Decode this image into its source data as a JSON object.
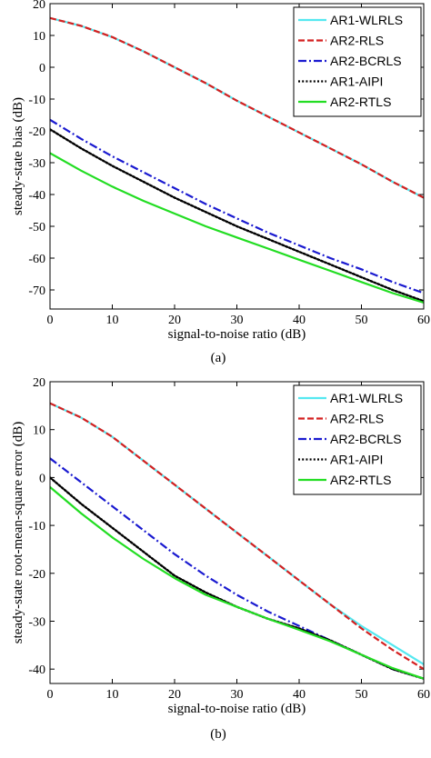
{
  "chart_data": [
    {
      "type": "line",
      "caption": "(a)",
      "xlabel": "signal-to-noise ratio (dB)",
      "ylabel": "steady-state bias (dB)",
      "xlim": [
        0,
        60
      ],
      "ylim": [
        -76,
        20
      ],
      "xticks": [
        0,
        10,
        20,
        30,
        40,
        50,
        60
      ],
      "yticks": [
        20,
        10,
        0,
        -10,
        -20,
        -30,
        -40,
        -50,
        -60,
        -70
      ],
      "legend_position": "top-right",
      "x": [
        0,
        5,
        10,
        15,
        20,
        25,
        30,
        35,
        40,
        45,
        50,
        55,
        60
      ],
      "series": [
        {
          "name": "AR1-WLRLS",
          "color": "#55e8f0",
          "dash": "solid",
          "values": [
            15.5,
            13,
            9.5,
            5,
            0,
            -5,
            -10.5,
            -15.5,
            -20.5,
            -25.5,
            -30.5,
            -36,
            -41
          ]
        },
        {
          "name": "AR2-RLS",
          "color": "#d42020",
          "dash": "dashed",
          "values": [
            15.5,
            13,
            9.5,
            5,
            0,
            -5,
            -10.5,
            -15.5,
            -20.5,
            -25.5,
            -30.5,
            -36,
            -41
          ]
        },
        {
          "name": "AR2-BCRLS",
          "color": "#1a1ad0",
          "dash": "dashdot",
          "values": [
            -16.5,
            -22.5,
            -28,
            -33,
            -38,
            -43,
            -47.5,
            -52,
            -56,
            -60,
            -63.5,
            -67.5,
            -71
          ]
        },
        {
          "name": "AR1-AIPI",
          "color": "#000000",
          "dash": "dotted",
          "values": [
            -19.5,
            -25.5,
            -31,
            -36,
            -41,
            -45.5,
            -50,
            -54,
            -58,
            -62,
            -66,
            -70,
            -73.5
          ]
        },
        {
          "name": "AR2-RTLS",
          "color": "#22dd22",
          "dash": "solid",
          "values": [
            -27,
            -32.5,
            -37.5,
            -42,
            -46,
            -50,
            -53.5,
            -57,
            -60.5,
            -64,
            -67.5,
            -71,
            -74
          ]
        }
      ]
    },
    {
      "type": "line",
      "caption": "(b)",
      "xlabel": "signal-to-noise ratio (dB)",
      "ylabel": "steady-state root-mean-square error (dB)",
      "xlim": [
        0,
        60
      ],
      "ylim": [
        -43,
        20
      ],
      "xticks": [
        0,
        10,
        20,
        30,
        40,
        50,
        60
      ],
      "yticks": [
        20,
        10,
        0,
        -10,
        -20,
        -30,
        -40
      ],
      "legend_position": "top-right",
      "x": [
        0,
        5,
        10,
        15,
        20,
        25,
        30,
        35,
        40,
        45,
        50,
        55,
        60
      ],
      "series": [
        {
          "name": "AR1-WLRLS",
          "color": "#55e8f0",
          "dash": "solid",
          "values": [
            15.5,
            12.5,
            8.5,
            3.5,
            -1.5,
            -6.5,
            -11.5,
            -16.5,
            -21.5,
            -26.5,
            -31,
            -35,
            -39
          ]
        },
        {
          "name": "AR2-RLS",
          "color": "#d42020",
          "dash": "dashed",
          "values": [
            15.5,
            12.5,
            8.5,
            3.5,
            -1.5,
            -6.5,
            -11.5,
            -16.5,
            -21.5,
            -26.5,
            -31.5,
            -36,
            -40
          ]
        },
        {
          "name": "AR2-BCRLS",
          "color": "#1a1ad0",
          "dash": "dashdot",
          "values": [
            4,
            -1,
            -6,
            -11,
            -16,
            -20.5,
            -24.5,
            -28,
            -31,
            -34,
            -37,
            -40,
            -42
          ]
        },
        {
          "name": "AR1-AIPI",
          "color": "#000000",
          "dash": "dotted",
          "values": [
            0,
            -5.5,
            -10.5,
            -15.5,
            -20.5,
            -24,
            -27,
            -29.5,
            -31.5,
            -34,
            -37,
            -40,
            -42
          ]
        },
        {
          "name": "AR2-RTLS",
          "color": "#22dd22",
          "dash": "solid",
          "values": [
            -2,
            -7.5,
            -12.5,
            -17,
            -21,
            -24.5,
            -27,
            -29.5,
            -31.8,
            -34.2,
            -37,
            -39.8,
            -42
          ]
        }
      ]
    }
  ]
}
